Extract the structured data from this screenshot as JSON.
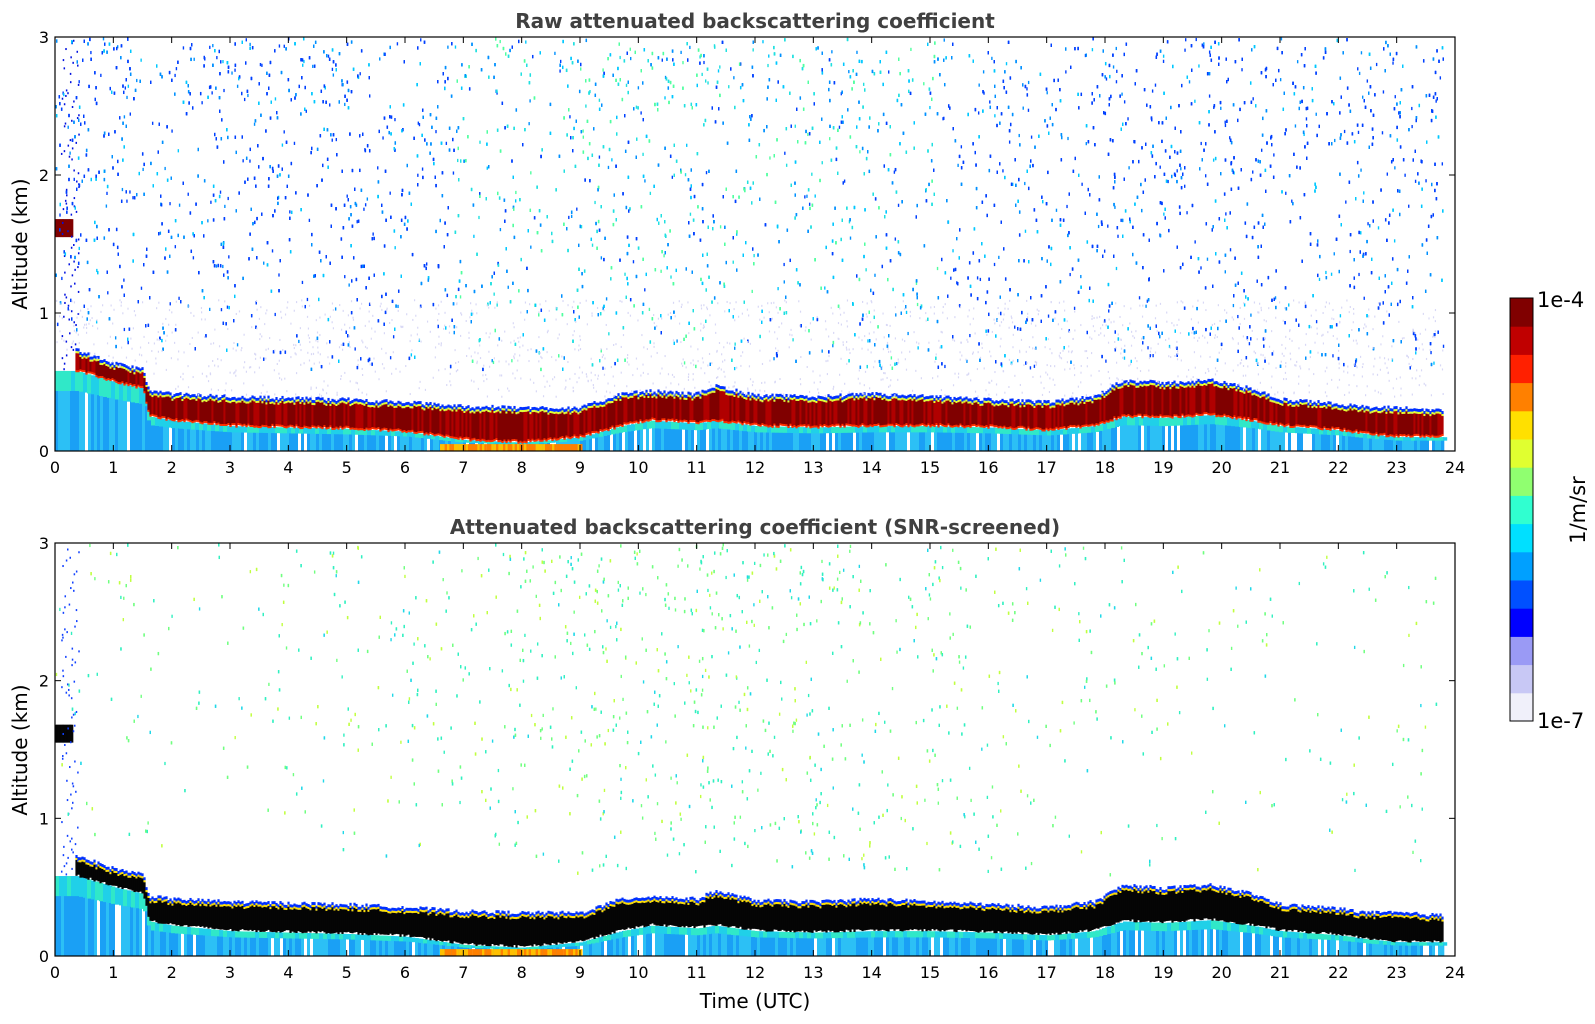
{
  "chart_data": [
    {
      "type": "heatmap",
      "title": "Raw attenuated backscattering coefficient",
      "xlabel": "",
      "ylabel": "Altitude (km)",
      "xlim": [
        0,
        24
      ],
      "ylim": [
        0,
        3
      ],
      "x_ticks": [
        "0",
        "1",
        "2",
        "3",
        "4",
        "5",
        "6",
        "7",
        "8",
        "9",
        "10",
        "11",
        "12",
        "13",
        "14",
        "15",
        "16",
        "17",
        "18",
        "19",
        "20",
        "21",
        "22",
        "23",
        "24"
      ],
      "y_ticks": [
        "0",
        "1",
        "2",
        "3"
      ],
      "screened": false,
      "cloud_layer": {
        "description_units": "time in UTC hours, altitude in km",
        "time": [
          0.35,
          0.6,
          1.0,
          1.5,
          1.6,
          2.0,
          3.0,
          4.0,
          5.0,
          6.0,
          7.0,
          8.0,
          9.0,
          9.7,
          10.2,
          11.0,
          11.3,
          12.0,
          13.0,
          14.0,
          15.0,
          16.0,
          17.0,
          17.8,
          18.3,
          19.0,
          19.8,
          20.5,
          21.0,
          22.0,
          22.5,
          23.0,
          23.8
        ],
        "top_km": [
          0.72,
          0.68,
          0.62,
          0.58,
          0.42,
          0.4,
          0.38,
          0.37,
          0.36,
          0.34,
          0.31,
          0.3,
          0.3,
          0.4,
          0.42,
          0.4,
          0.46,
          0.39,
          0.38,
          0.4,
          0.38,
          0.36,
          0.34,
          0.38,
          0.5,
          0.48,
          0.5,
          0.44,
          0.36,
          0.33,
          0.3,
          0.3,
          0.28
        ],
        "base_km": [
          0.58,
          0.55,
          0.5,
          0.45,
          0.25,
          0.22,
          0.18,
          0.17,
          0.16,
          0.14,
          0.08,
          0.06,
          0.1,
          0.18,
          0.22,
          0.2,
          0.22,
          0.18,
          0.17,
          0.18,
          0.18,
          0.17,
          0.15,
          0.18,
          0.25,
          0.24,
          0.26,
          0.22,
          0.18,
          0.15,
          0.12,
          0.1,
          0.1
        ]
      },
      "elevated_layer": {
        "time_start": 0.0,
        "time_end": 0.3,
        "bottom_km": 1.55,
        "top_km": 1.68
      }
    },
    {
      "type": "heatmap",
      "title": "Attenuated backscattering coefficient (SNR-screened)",
      "xlabel": "Time (UTC)",
      "ylabel": "Altitude (km)",
      "xlim": [
        0,
        24
      ],
      "ylim": [
        0,
        3
      ],
      "x_ticks": [
        "0",
        "1",
        "2",
        "3",
        "4",
        "5",
        "6",
        "7",
        "8",
        "9",
        "10",
        "11",
        "12",
        "13",
        "14",
        "15",
        "16",
        "17",
        "18",
        "19",
        "20",
        "21",
        "22",
        "23",
        "24"
      ],
      "y_ticks": [
        "0",
        "1",
        "2",
        "3"
      ],
      "screened": true
    }
  ],
  "colorbar": {
    "max_label": "1e-4",
    "min_label": "1e-7",
    "unit_label": "1/m/sr",
    "scale": "log",
    "colors": [
      "#f0f0fa",
      "#c8c8f5",
      "#9a9af5",
      "#0000ff",
      "#0050ff",
      "#00a0ff",
      "#00e0ff",
      "#30ffd0",
      "#90ff70",
      "#e0ff30",
      "#ffe000",
      "#ff8000",
      "#ff2000",
      "#c00000",
      "#800000"
    ]
  }
}
